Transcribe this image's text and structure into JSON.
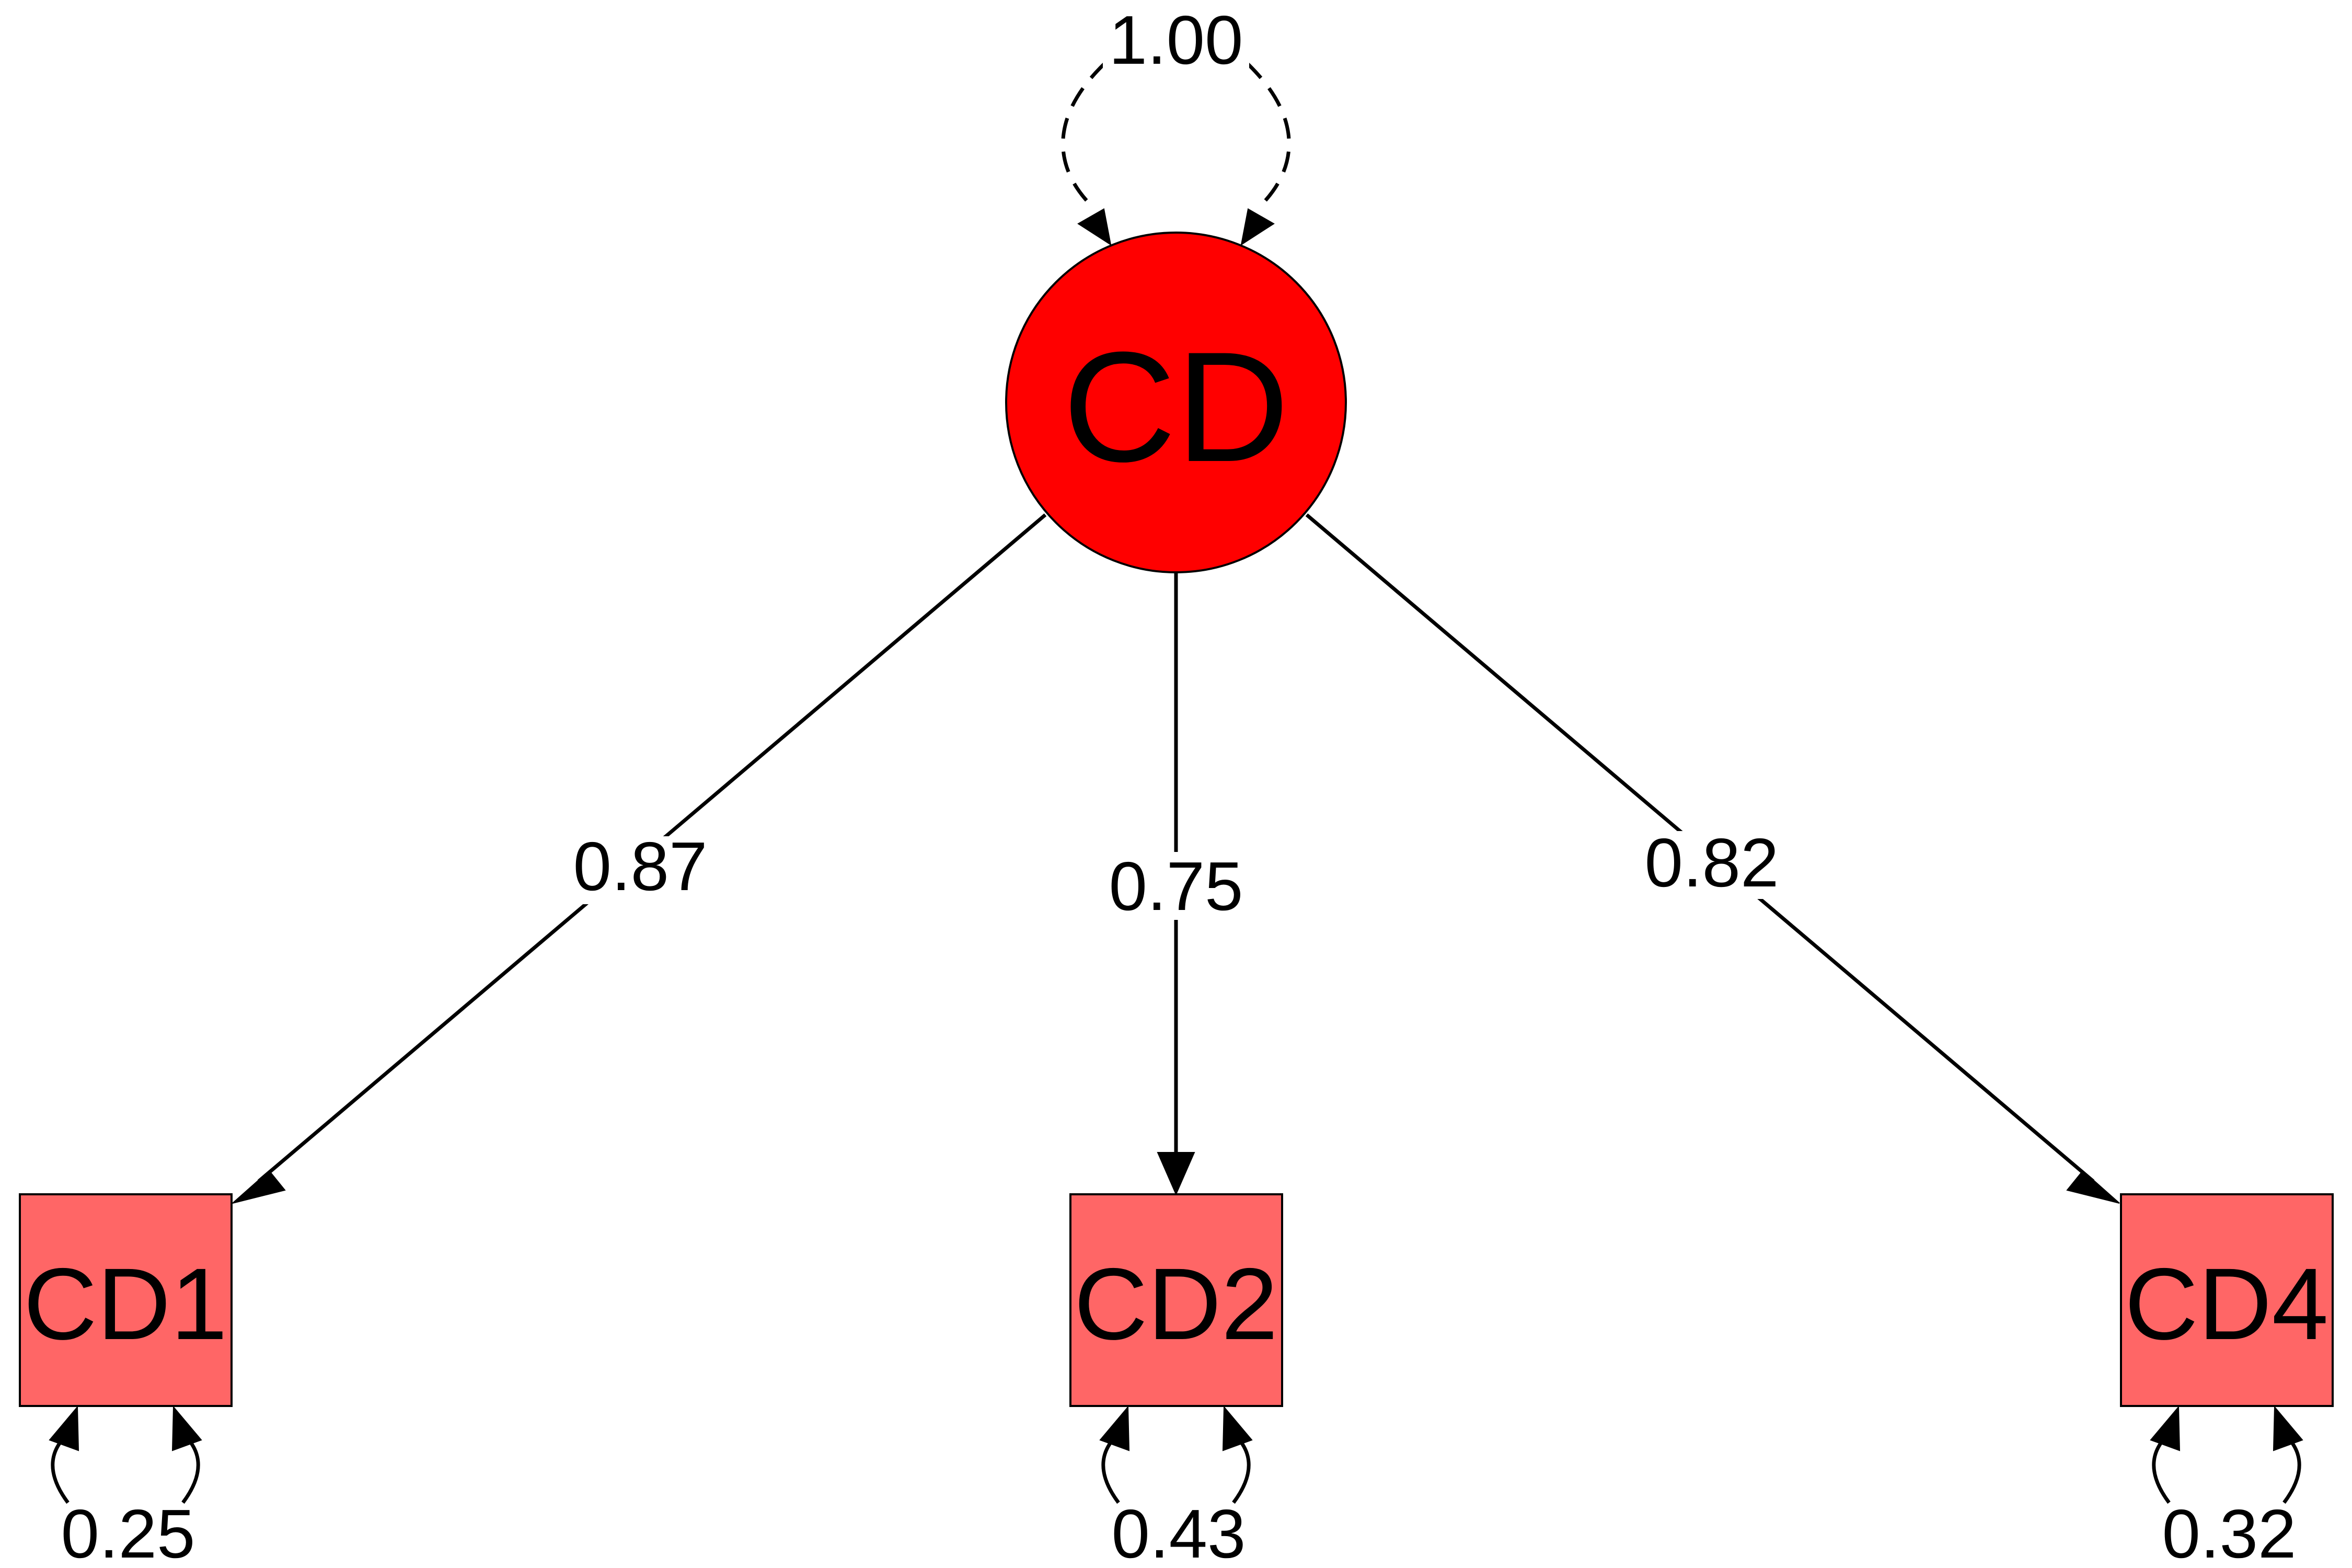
{
  "diagram": {
    "type": "path-diagram",
    "latent": {
      "label": "CD",
      "variance": "1.00",
      "fill": "#ff0000"
    },
    "indicators": [
      {
        "label": "CD1",
        "loading": "0.87",
        "residual": "0.25",
        "fill": "#ff6666"
      },
      {
        "label": "CD2",
        "loading": "0.75",
        "residual": "0.43",
        "fill": "#ff6666"
      },
      {
        "label": "CD4",
        "loading": "0.82",
        "residual": "0.32",
        "fill": "#ff6666"
      }
    ],
    "edges": [
      {
        "from": "CD",
        "to": "CD1",
        "label": "0.87",
        "style": "solid"
      },
      {
        "from": "CD",
        "to": "CD2",
        "label": "0.75",
        "style": "solid"
      },
      {
        "from": "CD",
        "to": "CD4",
        "label": "0.82",
        "style": "solid"
      },
      {
        "from": "CD",
        "to": "CD",
        "label": "1.00",
        "style": "dashed"
      },
      {
        "from": "CD1",
        "to": "CD1",
        "label": "0.25",
        "style": "solid"
      },
      {
        "from": "CD2",
        "to": "CD2",
        "label": "0.43",
        "style": "solid"
      },
      {
        "from": "CD4",
        "to": "CD4",
        "label": "0.32",
        "style": "solid"
      }
    ]
  }
}
